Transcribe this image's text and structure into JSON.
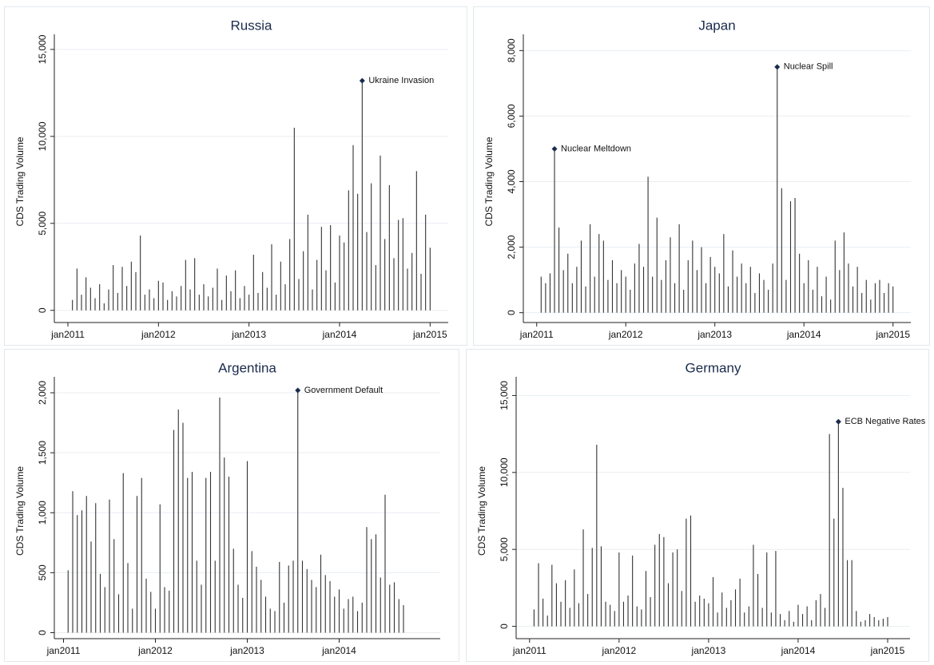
{
  "chart_data": [
    {
      "type": "spike",
      "title": "Russia",
      "y_label": "CDS Trading Volume",
      "color": "#333333",
      "grid": true,
      "xlim": [
        2010.85,
        2015.2
      ],
      "xticks": [
        {
          "value": 2011,
          "label": "jan2011"
        },
        {
          "value": 2012,
          "label": "jan2012"
        },
        {
          "value": 2013,
          "label": "jan2013"
        },
        {
          "value": 2014,
          "label": "jan2014"
        },
        {
          "value": 2015,
          "label": "jan2015"
        }
      ],
      "ylim": [
        -700,
        15500
      ],
      "yticks": [
        0,
        {
          "value": 5000,
          "label": "5,000"
        },
        {
          "value": 10000,
          "label": "10,000"
        },
        {
          "value": 15000,
          "label": "15,000"
        }
      ],
      "x": [
        2011.05,
        2011.1,
        2011.15,
        2011.2,
        2011.25,
        2011.3,
        2011.35,
        2011.4,
        2011.45,
        2011.5,
        2011.55,
        2011.6,
        2011.65,
        2011.7,
        2011.75,
        2011.8,
        2011.85,
        2011.9,
        2011.95,
        2012.0,
        2012.05,
        2012.1,
        2012.15,
        2012.2,
        2012.25,
        2012.3,
        2012.35,
        2012.4,
        2012.45,
        2012.5,
        2012.55,
        2012.6,
        2012.65,
        2012.7,
        2012.75,
        2012.8,
        2012.85,
        2012.9,
        2012.95,
        2013.0,
        2013.05,
        2013.1,
        2013.15,
        2013.2,
        2013.25,
        2013.3,
        2013.35,
        2013.4,
        2013.45,
        2013.5,
        2013.55,
        2013.6,
        2013.65,
        2013.7,
        2013.75,
        2013.8,
        2013.85,
        2013.9,
        2013.95,
        2014.0,
        2014.05,
        2014.1,
        2014.15,
        2014.2,
        2014.25,
        2014.3,
        2014.35,
        2014.4,
        2014.45,
        2014.5,
        2014.55,
        2014.6,
        2014.65,
        2014.7,
        2014.75,
        2014.8,
        2014.85,
        2014.9,
        2014.95,
        2015.0
      ],
      "values": [
        600,
        2400,
        900,
        1900,
        1300,
        700,
        1500,
        400,
        1200,
        2600,
        1000,
        2500,
        1400,
        2800,
        2200,
        4300,
        900,
        1200,
        700,
        1700,
        1600,
        600,
        1100,
        800,
        1400,
        2900,
        1200,
        3000,
        900,
        1500,
        800,
        1300,
        2400,
        600,
        2000,
        1100,
        2300,
        700,
        1400,
        900,
        3200,
        1000,
        2200,
        1300,
        3800,
        900,
        2800,
        1500,
        4100,
        10500,
        1800,
        3400,
        5500,
        1200,
        2900,
        4800,
        2300,
        4900,
        1600,
        4300,
        3900,
        6900,
        9500,
        6700,
        13200,
        4500,
        7300,
        2600,
        8900,
        4100,
        7200,
        3000,
        5200,
        5300,
        2400,
        3300,
        8000,
        2100,
        5500,
        3600
      ],
      "annotations": [
        {
          "text": "Ukraine Invasion",
          "x": 2014.25,
          "y": 13200
        }
      ]
    },
    {
      "type": "spike",
      "title": "Japan",
      "y_label": "CDS Trading Volume",
      "color": "#333333",
      "grid": true,
      "xlim": [
        2010.85,
        2015.2
      ],
      "xticks": [
        {
          "value": 2011,
          "label": "jan2011"
        },
        {
          "value": 2012,
          "label": "jan2012"
        },
        {
          "value": 2013,
          "label": "jan2013"
        },
        {
          "value": 2014,
          "label": "jan2014"
        },
        {
          "value": 2015,
          "label": "jan2015"
        }
      ],
      "ylim": [
        -300,
        8300
      ],
      "yticks": [
        0,
        {
          "value": 2000,
          "label": "2,000"
        },
        {
          "value": 4000,
          "label": "4,000"
        },
        {
          "value": 6000,
          "label": "6,000"
        },
        {
          "value": 8000,
          "label": "8,000"
        }
      ],
      "x": [
        2011.05,
        2011.1,
        2011.15,
        2011.2,
        2011.25,
        2011.3,
        2011.35,
        2011.4,
        2011.45,
        2011.5,
        2011.55,
        2011.6,
        2011.65,
        2011.7,
        2011.75,
        2011.8,
        2011.85,
        2011.9,
        2011.95,
        2012.0,
        2012.05,
        2012.1,
        2012.15,
        2012.2,
        2012.25,
        2012.3,
        2012.35,
        2012.4,
        2012.45,
        2012.5,
        2012.55,
        2012.6,
        2012.65,
        2012.7,
        2012.75,
        2012.8,
        2012.85,
        2012.9,
        2012.95,
        2013.0,
        2013.05,
        2013.1,
        2013.15,
        2013.2,
        2013.25,
        2013.3,
        2013.35,
        2013.4,
        2013.45,
        2013.5,
        2013.55,
        2013.6,
        2013.65,
        2013.7,
        2013.75,
        2013.8,
        2013.85,
        2013.9,
        2013.95,
        2014.0,
        2014.05,
        2014.1,
        2014.15,
        2014.2,
        2014.25,
        2014.3,
        2014.35,
        2014.4,
        2014.45,
        2014.5,
        2014.55,
        2014.6,
        2014.65,
        2014.7,
        2014.75,
        2014.8,
        2014.85,
        2014.9,
        2014.95,
        2015.0
      ],
      "values": [
        1100,
        900,
        1200,
        5000,
        2600,
        1300,
        1800,
        900,
        1400,
        2200,
        800,
        2700,
        1100,
        2400,
        2200,
        1000,
        1600,
        900,
        1300,
        1100,
        700,
        1500,
        2100,
        1400,
        4150,
        1100,
        2900,
        1000,
        1600,
        2300,
        900,
        2700,
        700,
        1600,
        2200,
        1300,
        2000,
        900,
        1700,
        1400,
        1200,
        2400,
        800,
        1900,
        1100,
        1500,
        900,
        1400,
        600,
        1200,
        1000,
        700,
        1500,
        7500,
        3800,
        1000,
        3400,
        3500,
        1800,
        900,
        1600,
        700,
        1400,
        500,
        1100,
        400,
        2200,
        1300,
        2450,
        1500,
        800,
        1400,
        600,
        1000,
        400,
        900,
        1000,
        600,
        900,
        800
      ],
      "annotations": [
        {
          "text": "Nuclear Meltdown",
          "x": 2011.2,
          "y": 5000
        },
        {
          "text": "Nuclear Spill",
          "x": 2013.7,
          "y": 7500
        }
      ]
    },
    {
      "type": "spike",
      "title": "Argentina",
      "y_label": "CDS Trading Volume",
      "color": "#333333",
      "grid": true,
      "xlim": [
        2010.9,
        2015.1
      ],
      "xticks": [
        {
          "value": 2011,
          "label": "jan2011"
        },
        {
          "value": 2012,
          "label": "jan2012"
        },
        {
          "value": 2013,
          "label": "jan2013"
        },
        {
          "value": 2014,
          "label": "jan2014"
        }
      ],
      "ylim": [
        -50,
        2080
      ],
      "yticks": [
        0,
        500,
        {
          "value": 1000,
          "label": "1,000"
        },
        {
          "value": 1500,
          "label": "1,500"
        },
        {
          "value": 2000,
          "label": "2,000"
        }
      ],
      "x": [
        2011.05,
        2011.1,
        2011.15,
        2011.2,
        2011.25,
        2011.3,
        2011.35,
        2011.4,
        2011.45,
        2011.5,
        2011.55,
        2011.6,
        2011.65,
        2011.7,
        2011.75,
        2011.8,
        2011.85,
        2011.9,
        2011.95,
        2012.0,
        2012.05,
        2012.1,
        2012.15,
        2012.2,
        2012.25,
        2012.3,
        2012.35,
        2012.4,
        2012.45,
        2012.5,
        2012.55,
        2012.6,
        2012.65,
        2012.7,
        2012.75,
        2012.8,
        2012.85,
        2012.9,
        2012.95,
        2013.0,
        2013.05,
        2013.1,
        2013.15,
        2013.2,
        2013.25,
        2013.3,
        2013.35,
        2013.4,
        2013.45,
        2013.5,
        2013.55,
        2013.6,
        2013.65,
        2013.7,
        2013.75,
        2013.8,
        2013.85,
        2013.9,
        2013.95,
        2014.0,
        2014.05,
        2014.1,
        2014.15,
        2014.2,
        2014.25,
        2014.3,
        2014.35,
        2014.4,
        2014.45,
        2014.5,
        2014.55,
        2014.6,
        2014.65,
        2014.7
      ],
      "values": [
        520,
        1180,
        980,
        1020,
        1140,
        760,
        1080,
        490,
        380,
        1110,
        780,
        320,
        1330,
        580,
        200,
        1140,
        1290,
        450,
        340,
        200,
        1070,
        380,
        350,
        1690,
        1860,
        1750,
        1290,
        1340,
        600,
        400,
        1290,
        1340,
        600,
        1960,
        1460,
        1300,
        700,
        400,
        290,
        1430,
        680,
        550,
        440,
        300,
        200,
        180,
        590,
        250,
        560,
        600,
        2020,
        600,
        530,
        440,
        380,
        650,
        480,
        430,
        300,
        360,
        200,
        280,
        300,
        180,
        250,
        880,
        780,
        820,
        460,
        1150,
        400,
        420,
        280,
        230
      ],
      "annotations": [
        {
          "text": "Government Default",
          "x": 2013.55,
          "y": 2020
        }
      ]
    },
    {
      "type": "spike",
      "title": "Germany",
      "y_label": "CDS Trading Volume",
      "color": "#333333",
      "grid": true,
      "xlim": [
        2010.85,
        2015.25
      ],
      "xticks": [
        {
          "value": 2011,
          "label": "jan2011"
        },
        {
          "value": 2012,
          "label": "jan2012"
        },
        {
          "value": 2013,
          "label": "jan2013"
        },
        {
          "value": 2014,
          "label": "jan2014"
        },
        {
          "value": 2015,
          "label": "jan2015"
        }
      ],
      "ylim": [
        -800,
        15800
      ],
      "yticks": [
        0,
        {
          "value": 5000,
          "label": "5,000"
        },
        {
          "value": 10000,
          "label": "10,000"
        },
        {
          "value": 15000,
          "label": "15,000"
        }
      ],
      "x": [
        2011.05,
        2011.1,
        2011.15,
        2011.2,
        2011.25,
        2011.3,
        2011.35,
        2011.4,
        2011.45,
        2011.5,
        2011.55,
        2011.6,
        2011.65,
        2011.7,
        2011.75,
        2011.8,
        2011.85,
        2011.9,
        2011.95,
        2012.0,
        2012.05,
        2012.1,
        2012.15,
        2012.2,
        2012.25,
        2012.3,
        2012.35,
        2012.4,
        2012.45,
        2012.5,
        2012.55,
        2012.6,
        2012.65,
        2012.7,
        2012.75,
        2012.8,
        2012.85,
        2012.9,
        2012.95,
        2013.0,
        2013.05,
        2013.1,
        2013.15,
        2013.2,
        2013.25,
        2013.3,
        2013.35,
        2013.4,
        2013.45,
        2013.5,
        2013.55,
        2013.6,
        2013.65,
        2013.7,
        2013.75,
        2013.8,
        2013.85,
        2013.9,
        2013.95,
        2014.0,
        2014.05,
        2014.1,
        2014.15,
        2014.2,
        2014.25,
        2014.3,
        2014.35,
        2014.4,
        2014.45,
        2014.5,
        2014.55,
        2014.6,
        2014.65,
        2014.7,
        2014.75,
        2014.8,
        2014.85,
        2014.9,
        2014.95,
        2015.0
      ],
      "values": [
        1100,
        4100,
        1800,
        700,
        4000,
        2800,
        1600,
        3000,
        1200,
        3700,
        1500,
        6300,
        2100,
        5100,
        11800,
        5200,
        1600,
        1400,
        1000,
        4800,
        1600,
        2000,
        4600,
        1300,
        1100,
        3600,
        1900,
        5300,
        6000,
        5800,
        2800,
        4800,
        5000,
        2300,
        7000,
        7200,
        1600,
        2000,
        1800,
        1500,
        3200,
        900,
        2200,
        1200,
        1700,
        2400,
        3100,
        900,
        1300,
        5300,
        3400,
        1200,
        4800,
        900,
        4900,
        800,
        400,
        1000,
        300,
        1400,
        800,
        1300,
        400,
        1700,
        2100,
        1200,
        12500,
        7000,
        13300,
        9000,
        4300,
        4300,
        1000,
        300,
        400,
        800,
        600,
        400,
        500,
        600
      ],
      "annotations": [
        {
          "text": "ECB Negative Rates News",
          "x": 2014.45,
          "y": 13300
        }
      ]
    }
  ]
}
